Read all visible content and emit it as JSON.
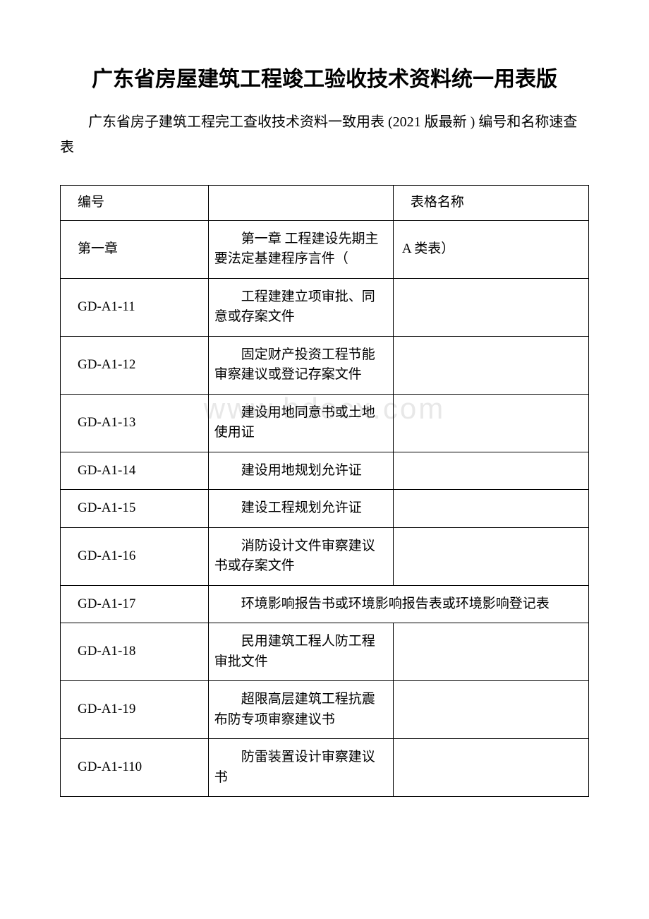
{
  "title": "广东省房屋建筑工程竣工验收技术资料统一用表版",
  "subtitle": "广东省房子建筑工程完工查收技术资料一致用表 (2021 版最新 ) 编号和名称速查表",
  "watermark": "www.bdocx.com",
  "table": {
    "header": {
      "col1": "编号",
      "col2": "",
      "col3": "表格名称"
    },
    "rows": [
      {
        "col1": "第一章",
        "col2": "第一章 工程建设先期主要法定基建程序言件（",
        "col3": "A 类表）",
        "merged": false
      },
      {
        "col1": "GD-A1-11",
        "col2": "工程建建立项审批、同意或存案文件",
        "col3": "",
        "merged": false
      },
      {
        "col1": "GD-A1-12",
        "col2": "固定财产投资工程节能审察建议或登记存案文件",
        "col3": "",
        "merged": false
      },
      {
        "col1": "GD-A1-13",
        "col2": "建设用地同意书或土地使用证",
        "col3": "",
        "merged": false
      },
      {
        "col1": "GD-A1-14",
        "col2": "建设用地规划允许证",
        "col3": "",
        "merged": false
      },
      {
        "col1": "GD-A1-15",
        "col2": "建设工程规划允许证",
        "col3": "",
        "merged": false
      },
      {
        "col1": "GD-A1-16",
        "col2": "消防设计文件审察建议书或存案文件",
        "col3": "",
        "merged": false
      },
      {
        "col1": "GD-A1-17",
        "col2": "环境影响报告书或环境影响报告表或环境影响登记表",
        "col3": "",
        "merged": true
      },
      {
        "col1": "GD-A1-18",
        "col2": "民用建筑工程人防工程审批文件",
        "col3": "",
        "merged": false
      },
      {
        "col1": "GD-A1-19",
        "col2": "超限高层建筑工程抗震布防专项审察建议书",
        "col3": "",
        "merged": false
      },
      {
        "col1": "GD-A1-110",
        "col2": "防雷装置设计审察建议书",
        "col3": "",
        "merged": false
      }
    ]
  }
}
